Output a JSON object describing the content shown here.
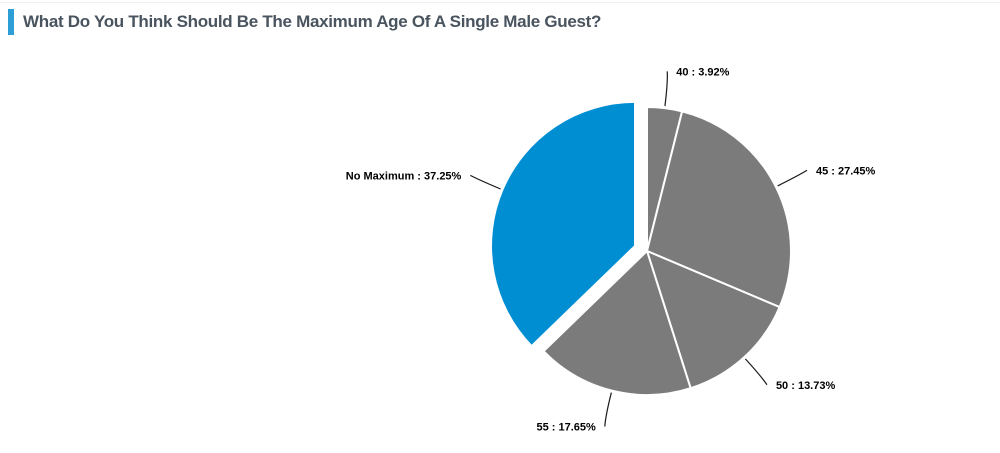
{
  "header": {
    "title": "What Do You Think Should Be The Maximum Age Of A Single Male Guest?",
    "accent_color": "#2e9ed6",
    "title_color": "#49545f"
  },
  "chart_data": {
    "type": "pie",
    "title": "What Do You Think Should Be The Maximum Age Of A Single Male Guest?",
    "legend": "none",
    "grid": false,
    "direction": "clockwise",
    "start_angle_deg": 0,
    "label_separator": " : ",
    "value_suffix": "%",
    "total": 100,
    "colors": {
      "default_slice": "#7b7b7b",
      "highlight_slice": "#008ed3"
    },
    "label_text_color": "#000000",
    "connector_color": "#1a1a1a",
    "slice_border_color": "#ffffff",
    "slices": [
      {
        "label": "40",
        "value": 3.92,
        "display": "40 : 3.92%",
        "color": "#7b7b7b",
        "exploded": false
      },
      {
        "label": "45",
        "value": 27.45,
        "display": "45 : 27.45%",
        "color": "#7b7b7b",
        "exploded": false
      },
      {
        "label": "50",
        "value": 13.73,
        "display": "50 : 13.73%",
        "color": "#7b7b7b",
        "exploded": false
      },
      {
        "label": "55",
        "value": 17.65,
        "display": "55 : 17.65%",
        "color": "#7b7b7b",
        "exploded": false
      },
      {
        "label": "No Maximum",
        "value": 37.25,
        "display": "No Maximum : 37.25%",
        "color": "#008ed3",
        "exploded": true
      }
    ]
  }
}
